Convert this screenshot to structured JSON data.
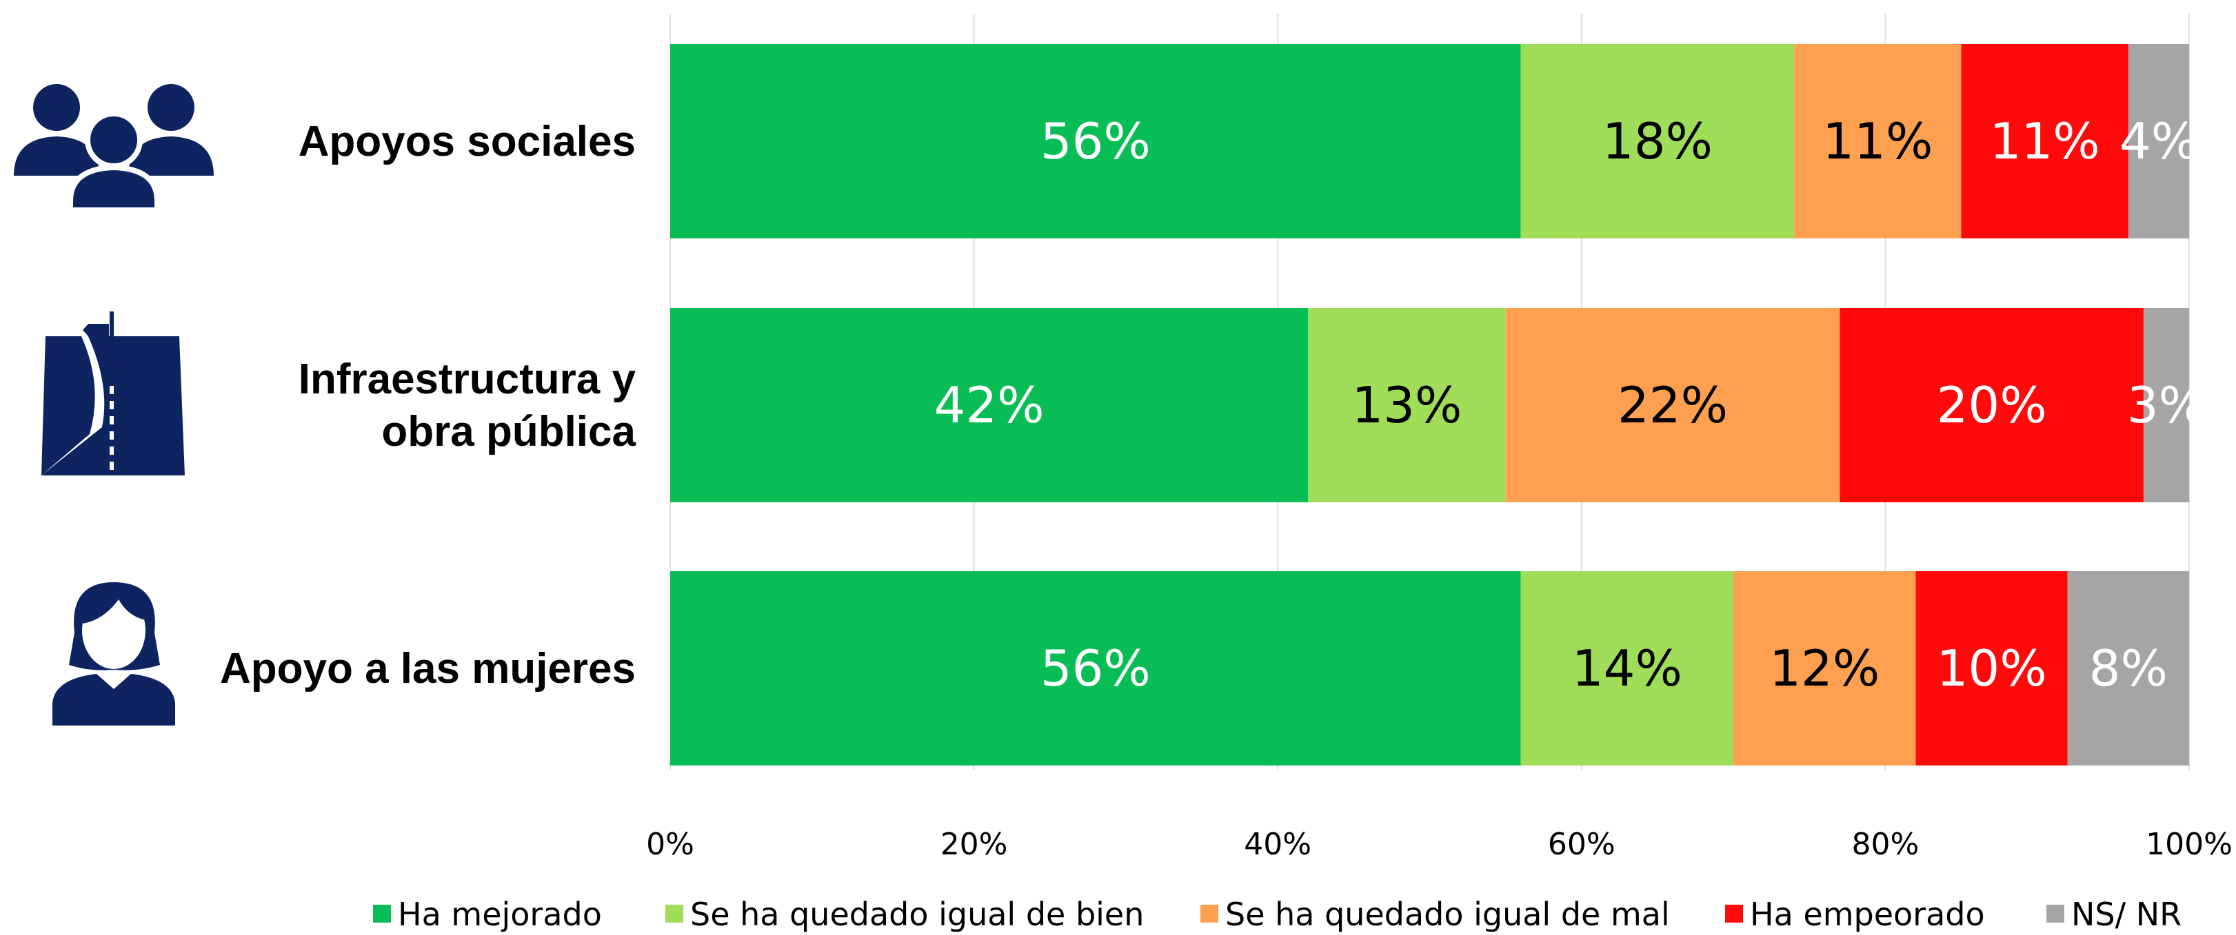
{
  "chart_data": {
    "type": "bar",
    "orientation": "horizontal",
    "stacked": true,
    "categories": [
      [
        "Apoyos sociales"
      ],
      [
        "Infraestructura y",
        "obra pública"
      ],
      [
        "Apoyo a las mujeres"
      ]
    ],
    "category_icons": [
      "people-group-icon",
      "road-signpost-icon",
      "woman-icon"
    ],
    "series": [
      {
        "name": "Ha mejorado",
        "color": "#08BD55",
        "label_color": "#ffffff",
        "values": [
          56,
          42,
          56
        ],
        "labels": [
          "56%",
          "42%",
          "56%"
        ]
      },
      {
        "name": "Se ha quedado igual de bien",
        "color": "#A0DE5A",
        "label_color": "#000000",
        "values": [
          18,
          13,
          14
        ],
        "labels": [
          "18%",
          "13%",
          "14%"
        ]
      },
      {
        "name": "Se ha quedado igual de mal",
        "color": "#FEA04F",
        "label_color": "#000000",
        "values": [
          11,
          22,
          12
        ],
        "labels": [
          "11%",
          "22%",
          "12%"
        ]
      },
      {
        "name": "Ha empeorado",
        "color": "#FE0A0A",
        "label_color": "#ffffff",
        "values": [
          11,
          20,
          10
        ],
        "labels": [
          "11%",
          "20%",
          "10%"
        ]
      },
      {
        "name": "NS/ NR",
        "color": "#A5A5A5",
        "label_color": "#ffffff",
        "values": [
          4,
          3,
          8
        ],
        "labels": [
          "4%",
          "3%",
          "8%"
        ]
      }
    ],
    "xlim": [
      0,
      100
    ],
    "x_ticks": [
      0,
      20,
      40,
      60,
      80,
      100
    ],
    "x_tick_labels": [
      "0%",
      "20%",
      "40%",
      "60%",
      "80%",
      "100%"
    ],
    "grid": true,
    "legend_position": "bottom",
    "icon_color": "#0E2460"
  }
}
